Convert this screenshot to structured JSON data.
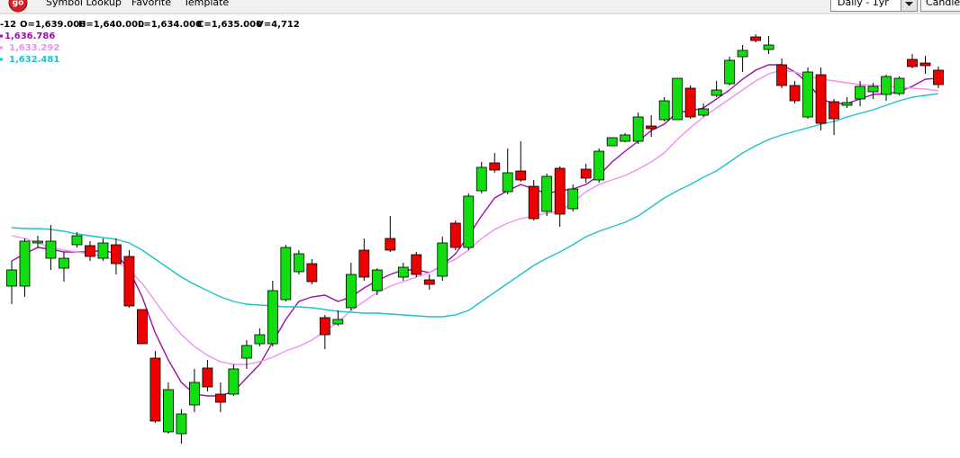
{
  "toolbar": {
    "logo": "go",
    "menu": [
      "Symbol Lookup",
      "Favorite",
      "Template"
    ],
    "period": "Daily - 1yr",
    "chart_style": "Candle"
  },
  "info": [
    "-12",
    "O=1,639.000",
    "H=1,640.000",
    "L=1,634.000",
    "C=1,635.000",
    "V=4,712"
  ],
  "chart_data": {
    "type": "candlestick",
    "ylim": [
      1534,
      1654
    ],
    "up_color": "#11dd11",
    "down_color": "#ee0000",
    "open": [
      1579,
      1579,
      1591,
      1586.75,
      1584,
      1590.5,
      1590.25,
      1586.75,
      1590.5,
      1587.25,
      1572.5,
      1559,
      1538.5,
      1538,
      1546,
      1556.25,
      1549,
      1549,
      1559,
      1563,
      1563,
      1575.25,
      1583,
      1585.25,
      1570.25,
      1568.5,
      1573,
      1589,
      1577.75,
      1592.25,
      1581.5,
      1587.75,
      1580.75,
      1581.75,
      1596.5,
      1589.75,
      1605.5,
      1613.25,
      1605.25,
      1611,
      1606.75,
      1599.75,
      1611.75,
      1600.5,
      1611.5,
      1608.5,
      1618,
      1619.25,
      1619.25,
      1623.5,
      1625.25,
      1625.25,
      1634,
      1626.5,
      1632,
      1635.25,
      1642.75,
      1648.25,
      1644.75,
      1640.5,
      1634.75,
      1626,
      1637.75,
      1630.25,
      1629.25,
      1631,
      1633,
      1632.25,
      1632.5,
      1642,
      1641,
      1639
    ],
    "high": [
      1586,
      1592.25,
      1593,
      1596,
      1588.5,
      1594,
      1591.5,
      1592.25,
      1592.25,
      1589,
      1572.5,
      1561,
      1552.25,
      1544.75,
      1556,
      1558.5,
      1552.25,
      1557.25,
      1564,
      1567.25,
      1580.5,
      1590.5,
      1589,
      1586.5,
      1571,
      1572.25,
      1585.5,
      1592.25,
      1584,
      1598.5,
      1585.5,
      1588.5,
      1582.25,
      1592.75,
      1597.25,
      1604.75,
      1613.5,
      1616,
      1617.25,
      1619.25,
      1608.5,
      1610.25,
      1612.25,
      1607.25,
      1613,
      1617.25,
      1620.25,
      1621.5,
      1627.25,
      1626.5,
      1631.5,
      1636.75,
      1634.75,
      1629.75,
      1636,
      1642.75,
      1646,
      1649,
      1648.5,
      1642.25,
      1636,
      1639.75,
      1639.75,
      1631,
      1631.5,
      1636,
      1635.5,
      1637.75,
      1637.25,
      1643.5,
      1643,
      1640
    ],
    "low": [
      1574,
      1576,
      1589.75,
      1583.5,
      1580.25,
      1589.75,
      1586,
      1586,
      1582.25,
      1573,
      1563,
      1541,
      1538,
      1535.25,
      1544,
      1549.75,
      1544,
      1548.5,
      1556,
      1562.25,
      1562.25,
      1574.75,
      1582.25,
      1579.5,
      1561.5,
      1568,
      1572.25,
      1580.5,
      1576.5,
      1588.5,
      1580.5,
      1581.5,
      1578,
      1580.5,
      1589,
      1589,
      1604.75,
      1610.5,
      1604.5,
      1608,
      1597.25,
      1598.5,
      1595.5,
      1599.75,
      1607.75,
      1607.75,
      1618,
      1619,
      1618.5,
      1620.5,
      1624.75,
      1625.25,
      1625.5,
      1626,
      1631.5,
      1634.75,
      1638.5,
      1646.75,
      1643.5,
      1634,
      1629.75,
      1625.5,
      1622.25,
      1621,
      1628.5,
      1629,
      1631,
      1630.5,
      1632,
      1639.5,
      1638,
      1634
    ],
    "close": [
      1583.5,
      1591.5,
      1591.5,
      1591.5,
      1586.75,
      1593,
      1587.25,
      1591,
      1585.25,
      1573.5,
      1563,
      1541.5,
      1550.25,
      1543.5,
      1552.25,
      1551,
      1546.75,
      1556,
      1562.5,
      1565.5,
      1577.75,
      1589.75,
      1588,
      1580.25,
      1565.5,
      1569.75,
      1582.25,
      1581.5,
      1583.5,
      1589,
      1584.25,
      1582.25,
      1579.5,
      1591,
      1589.75,
      1604,
      1612,
      1611.25,
      1610.5,
      1608.5,
      1597.75,
      1609.5,
      1599,
      1606,
      1609,
      1616.5,
      1620.25,
      1621,
      1626,
      1622.75,
      1630.5,
      1636.75,
      1626,
      1628.25,
      1633.5,
      1641.75,
      1644.5,
      1647.25,
      1646,
      1634.75,
      1630.5,
      1638.5,
      1624.25,
      1625.5,
      1630,
      1634.5,
      1634.5,
      1637.25,
      1636.75,
      1640,
      1640.25,
      1635
    ],
    "series": [
      {
        "color": "#9a10a8",
        "legend_label": "1,636.786",
        "values": [
          1586,
          1588,
          1589.75,
          1589.25,
          1588.5,
          1588.5,
          1588.5,
          1589,
          1588,
          1583.5,
          1576,
          1566,
          1558.5,
          1552.25,
          1549,
          1548.5,
          1548.5,
          1549.75,
          1553.5,
          1557.25,
          1563.5,
          1569.75,
          1574.75,
          1576,
          1576.5,
          1574.75,
          1576,
          1578.5,
          1580.5,
          1582.25,
          1583.5,
          1583.5,
          1582.75,
          1584.75,
          1588,
          1593,
          1598.5,
          1603.5,
          1605.5,
          1607.25,
          1606,
          1604.75,
          1605.5,
          1606,
          1607.25,
          1609.75,
          1613.5,
          1616.5,
          1619.25,
          1622.25,
          1624,
          1627.25,
          1627.75,
          1628.5,
          1631,
          1633.5,
          1636.5,
          1639,
          1640.5,
          1640.5,
          1638.5,
          1635.5,
          1631,
          1629.75,
          1629.75,
          1631,
          1632.25,
          1632.5,
          1633,
          1634.5,
          1636.5,
          1636.786
        ]
      },
      {
        "color": "#f090f0",
        "legend_label": "1,633.292",
        "values": [
          1593,
          1592.25,
          1591,
          1589.75,
          1589,
          1588.5,
          1588,
          1587.25,
          1586,
          1583.5,
          1579.75,
          1574.75,
          1569.75,
          1565.5,
          1562.25,
          1559.75,
          1558,
          1557.25,
          1557.25,
          1558,
          1559.25,
          1561,
          1562.25,
          1564,
          1566.5,
          1569,
          1572.25,
          1574.75,
          1577.25,
          1579,
          1580.25,
          1581.5,
          1582.75,
          1584.75,
          1586.5,
          1589,
          1592.25,
          1594.75,
          1596.5,
          1597.75,
          1598.5,
          1599.25,
          1599.75,
          1602.25,
          1605.25,
          1607.25,
          1608.5,
          1609.75,
          1611.5,
          1613.5,
          1616,
          1619.75,
          1623,
          1626,
          1628.5,
          1631,
          1633.5,
          1636,
          1638,
          1639,
          1638.5,
          1637.25,
          1636.5,
          1636,
          1635.5,
          1635,
          1634.75,
          1634.5,
          1634.25,
          1634,
          1633.75,
          1633.292
        ]
      },
      {
        "color": "#1ec3c8",
        "legend_label": "1,632.481",
        "values": [
          1595.25,
          1595,
          1595,
          1594.75,
          1594.25,
          1593.5,
          1593,
          1592.5,
          1592,
          1591,
          1589,
          1586.5,
          1584,
          1581.5,
          1579.5,
          1577.75,
          1576,
          1574.75,
          1574,
          1573.75,
          1573.5,
          1573.25,
          1573.25,
          1573,
          1572.5,
          1572,
          1571.75,
          1571.5,
          1571.5,
          1571.25,
          1571,
          1570.75,
          1570.5,
          1570.5,
          1571,
          1572.25,
          1574.75,
          1577.25,
          1579.75,
          1582.25,
          1584.75,
          1586.75,
          1588.5,
          1590.5,
          1592.75,
          1594.25,
          1595.5,
          1596.75,
          1598.5,
          1601,
          1603.5,
          1605.5,
          1607.25,
          1609.25,
          1611,
          1613.5,
          1616,
          1618,
          1619.75,
          1621,
          1622,
          1623,
          1624,
          1624.75,
          1626,
          1627,
          1628,
          1629.25,
          1630.5,
          1631.5,
          1632,
          1632.481
        ]
      }
    ]
  }
}
